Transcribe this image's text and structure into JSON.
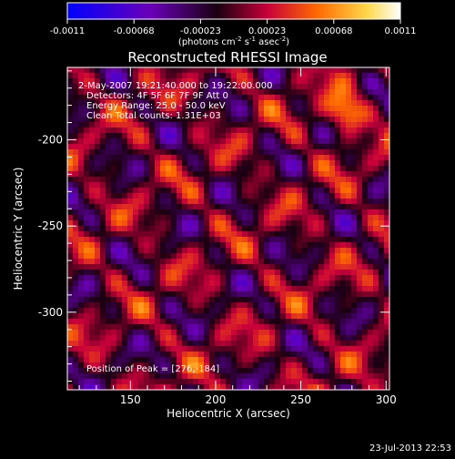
{
  "chart_data": {
    "type": "heatmap",
    "title": "Reconstructed RHESSI Image",
    "xlabel": "Heliocentric X (arcsec)",
    "ylabel": "Heliocentric Y (arcsec)",
    "xlim": [
      113,
      302
    ],
    "ylim": [
      -345,
      -158
    ],
    "x_ticks": [
      150,
      200,
      250,
      300
    ],
    "y_ticks": [
      -200,
      -250,
      -300
    ],
    "colorbar": {
      "ticks": [
        "-0.0011",
        "-0.00068",
        "-0.00023",
        "0.00023",
        "0.00068",
        "0.0011"
      ],
      "label_html": "(photons cm<tspan baseline-shift=\"super\" font-size=\"7\">-2</tspan> s<tspan baseline-shift=\"super\" font-size=\"7\">-1</tspan> asec<tspan baseline-shift=\"super\" font-size=\"7\">-2</tspan>)",
      "min": -0.0011,
      "max": 0.0011,
      "colors": [
        "#0000ff",
        "#6a00b8",
        "#1a0010",
        "#c8003a",
        "#ff6a00",
        "#ffd84a",
        "#ffffff"
      ]
    },
    "annotations": [
      "2-May-2007 19:21:40.000 to 19:22:00.000",
      "Detectors: 4F 5F 6F 7F 9F  Att 0",
      "Energy Range: 25.0 - 50.0 keV",
      "Clean    Total counts: 1.31E+03"
    ],
    "peak_text": "Position of Peak = [276,-184]",
    "peak": [
      276,
      -184
    ]
  },
  "timestamp": "23-Jul-2013 22:53"
}
